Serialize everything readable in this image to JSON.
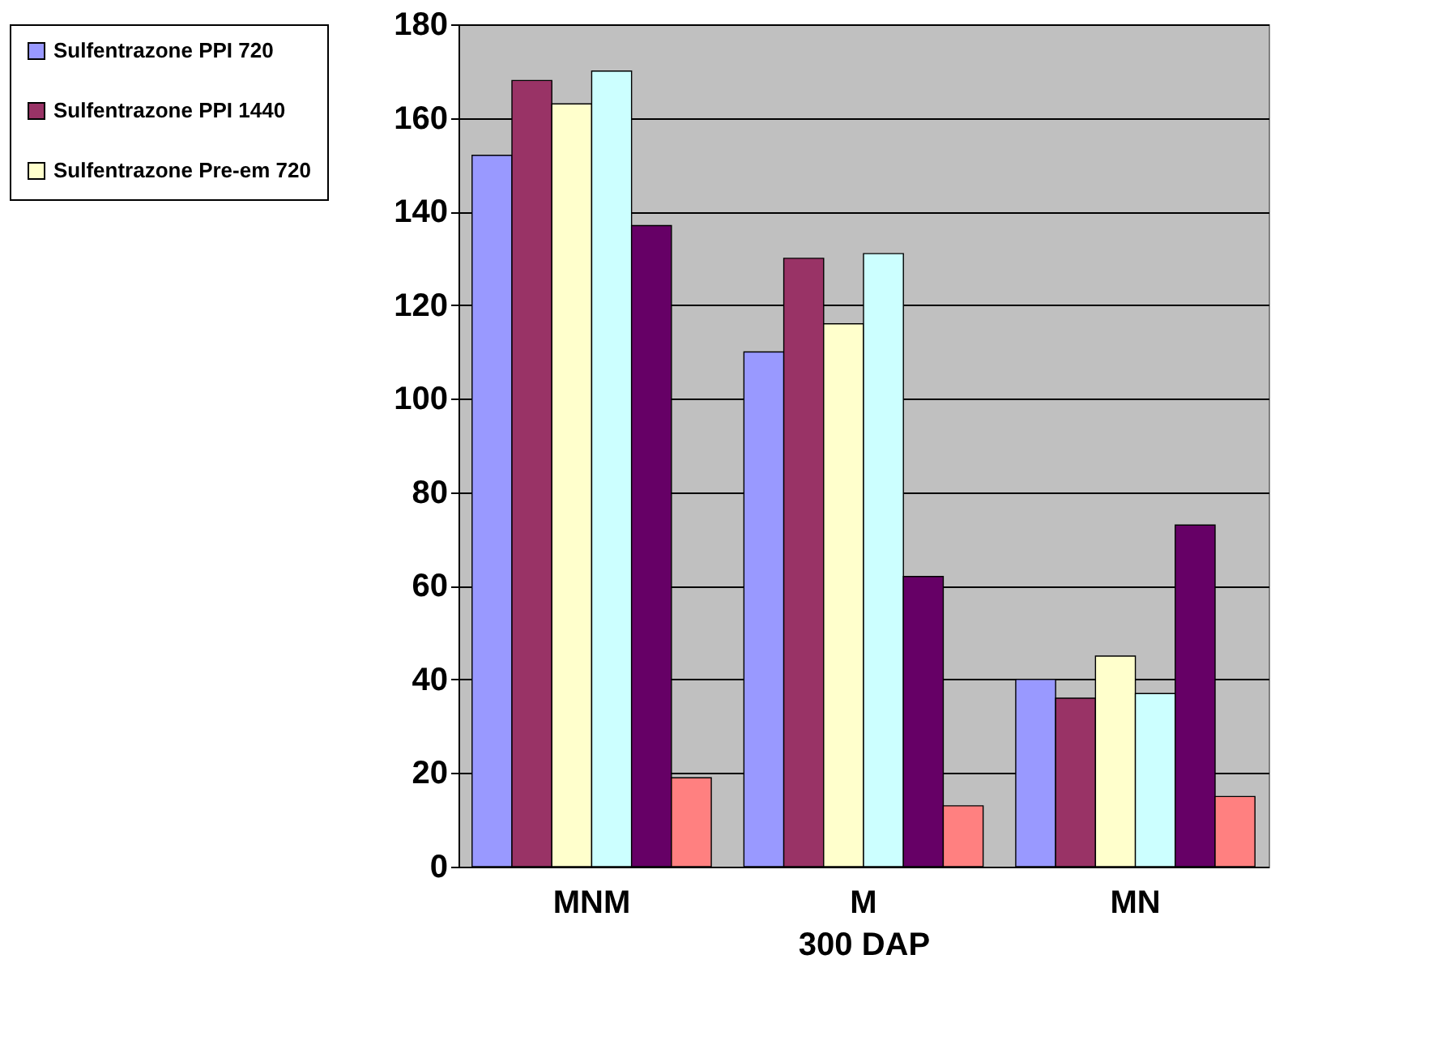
{
  "chart_data": {
    "type": "bar",
    "xlabel": "300 DAP",
    "categories": [
      "MNM",
      "M",
      "MN"
    ],
    "series": [
      {
        "name": "Sulfentrazone PPI 720",
        "color": "#9999ff",
        "values": [
          152,
          110,
          40
        ]
      },
      {
        "name": "Sulfentrazone PPI 1440",
        "color": "#993366",
        "values": [
          168,
          130,
          36
        ]
      },
      {
        "name": "Sulfentrazone Pre-em 720",
        "color": "#ffffcc",
        "values": [
          163,
          116,
          45
        ]
      },
      {
        "color": "#ccffff",
        "values": [
          170,
          131,
          37
        ]
      },
      {
        "color": "#660066",
        "values": [
          137,
          62,
          73
        ]
      },
      {
        "color": "#ff8080",
        "values": [
          19,
          13,
          15
        ]
      }
    ],
    "ylim": [
      0,
      180
    ],
    "yticks": [
      0,
      20,
      40,
      60,
      80,
      100,
      120,
      140,
      160,
      180
    ],
    "grid": "y",
    "legend": "left"
  }
}
